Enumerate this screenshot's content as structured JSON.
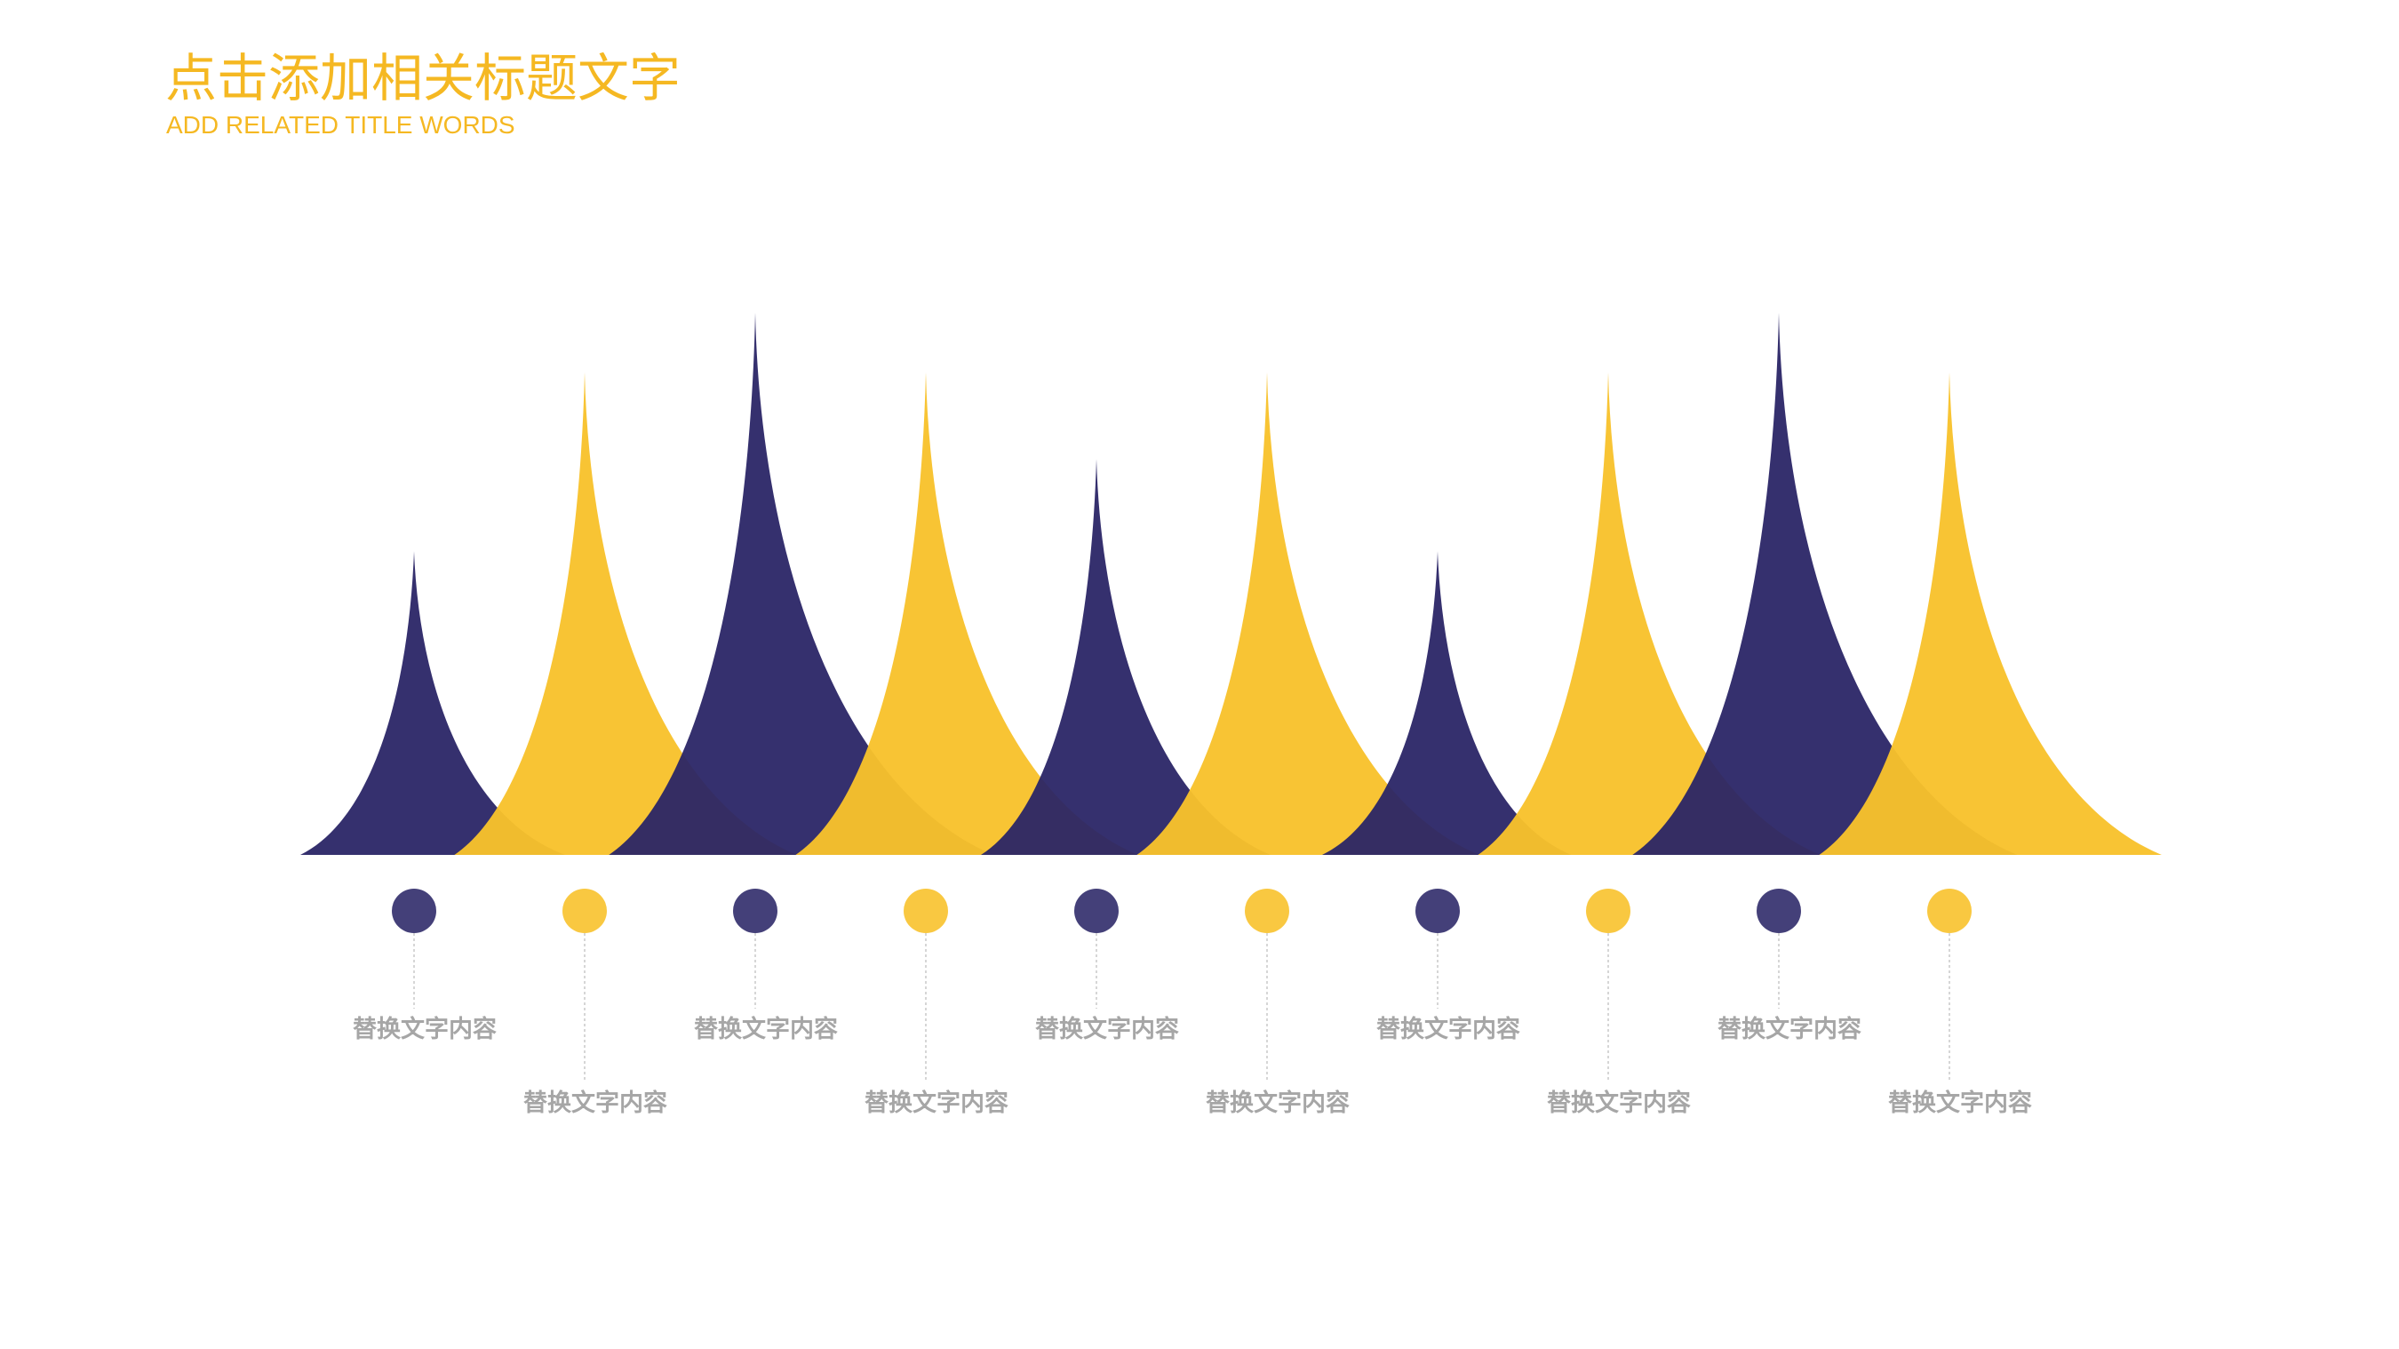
{
  "header": {
    "title": "点击添加相关标题文字",
    "subtitle": "ADD RELATED TITLE WORDS"
  },
  "colors": {
    "title": "#f5b822",
    "navy": "#2a2566",
    "yellow": "#f8c22c",
    "label": "#a6a6a6"
  },
  "items": [
    {
      "label": "替换文字内容",
      "color": "navy",
      "peak_level": 0.56
    },
    {
      "label": "替换文字内容",
      "color": "yellow",
      "peak_level": 0.89
    },
    {
      "label": "替换文字内容",
      "color": "navy",
      "peak_level": 1.0
    },
    {
      "label": "替换文字内容",
      "color": "yellow",
      "peak_level": 0.89
    },
    {
      "label": "替换文字内容",
      "color": "navy",
      "peak_level": 0.73
    },
    {
      "label": "替换文字内容",
      "color": "yellow",
      "peak_level": 0.89
    },
    {
      "label": "替换文字内容",
      "color": "navy",
      "peak_level": 0.56
    },
    {
      "label": "替换文字内容",
      "color": "yellow",
      "peak_level": 0.89
    },
    {
      "label": "替换文字内容",
      "color": "navy",
      "peak_level": 1.0
    },
    {
      "label": "替换文字内容",
      "color": "yellow",
      "peak_level": 0.89
    }
  ]
}
